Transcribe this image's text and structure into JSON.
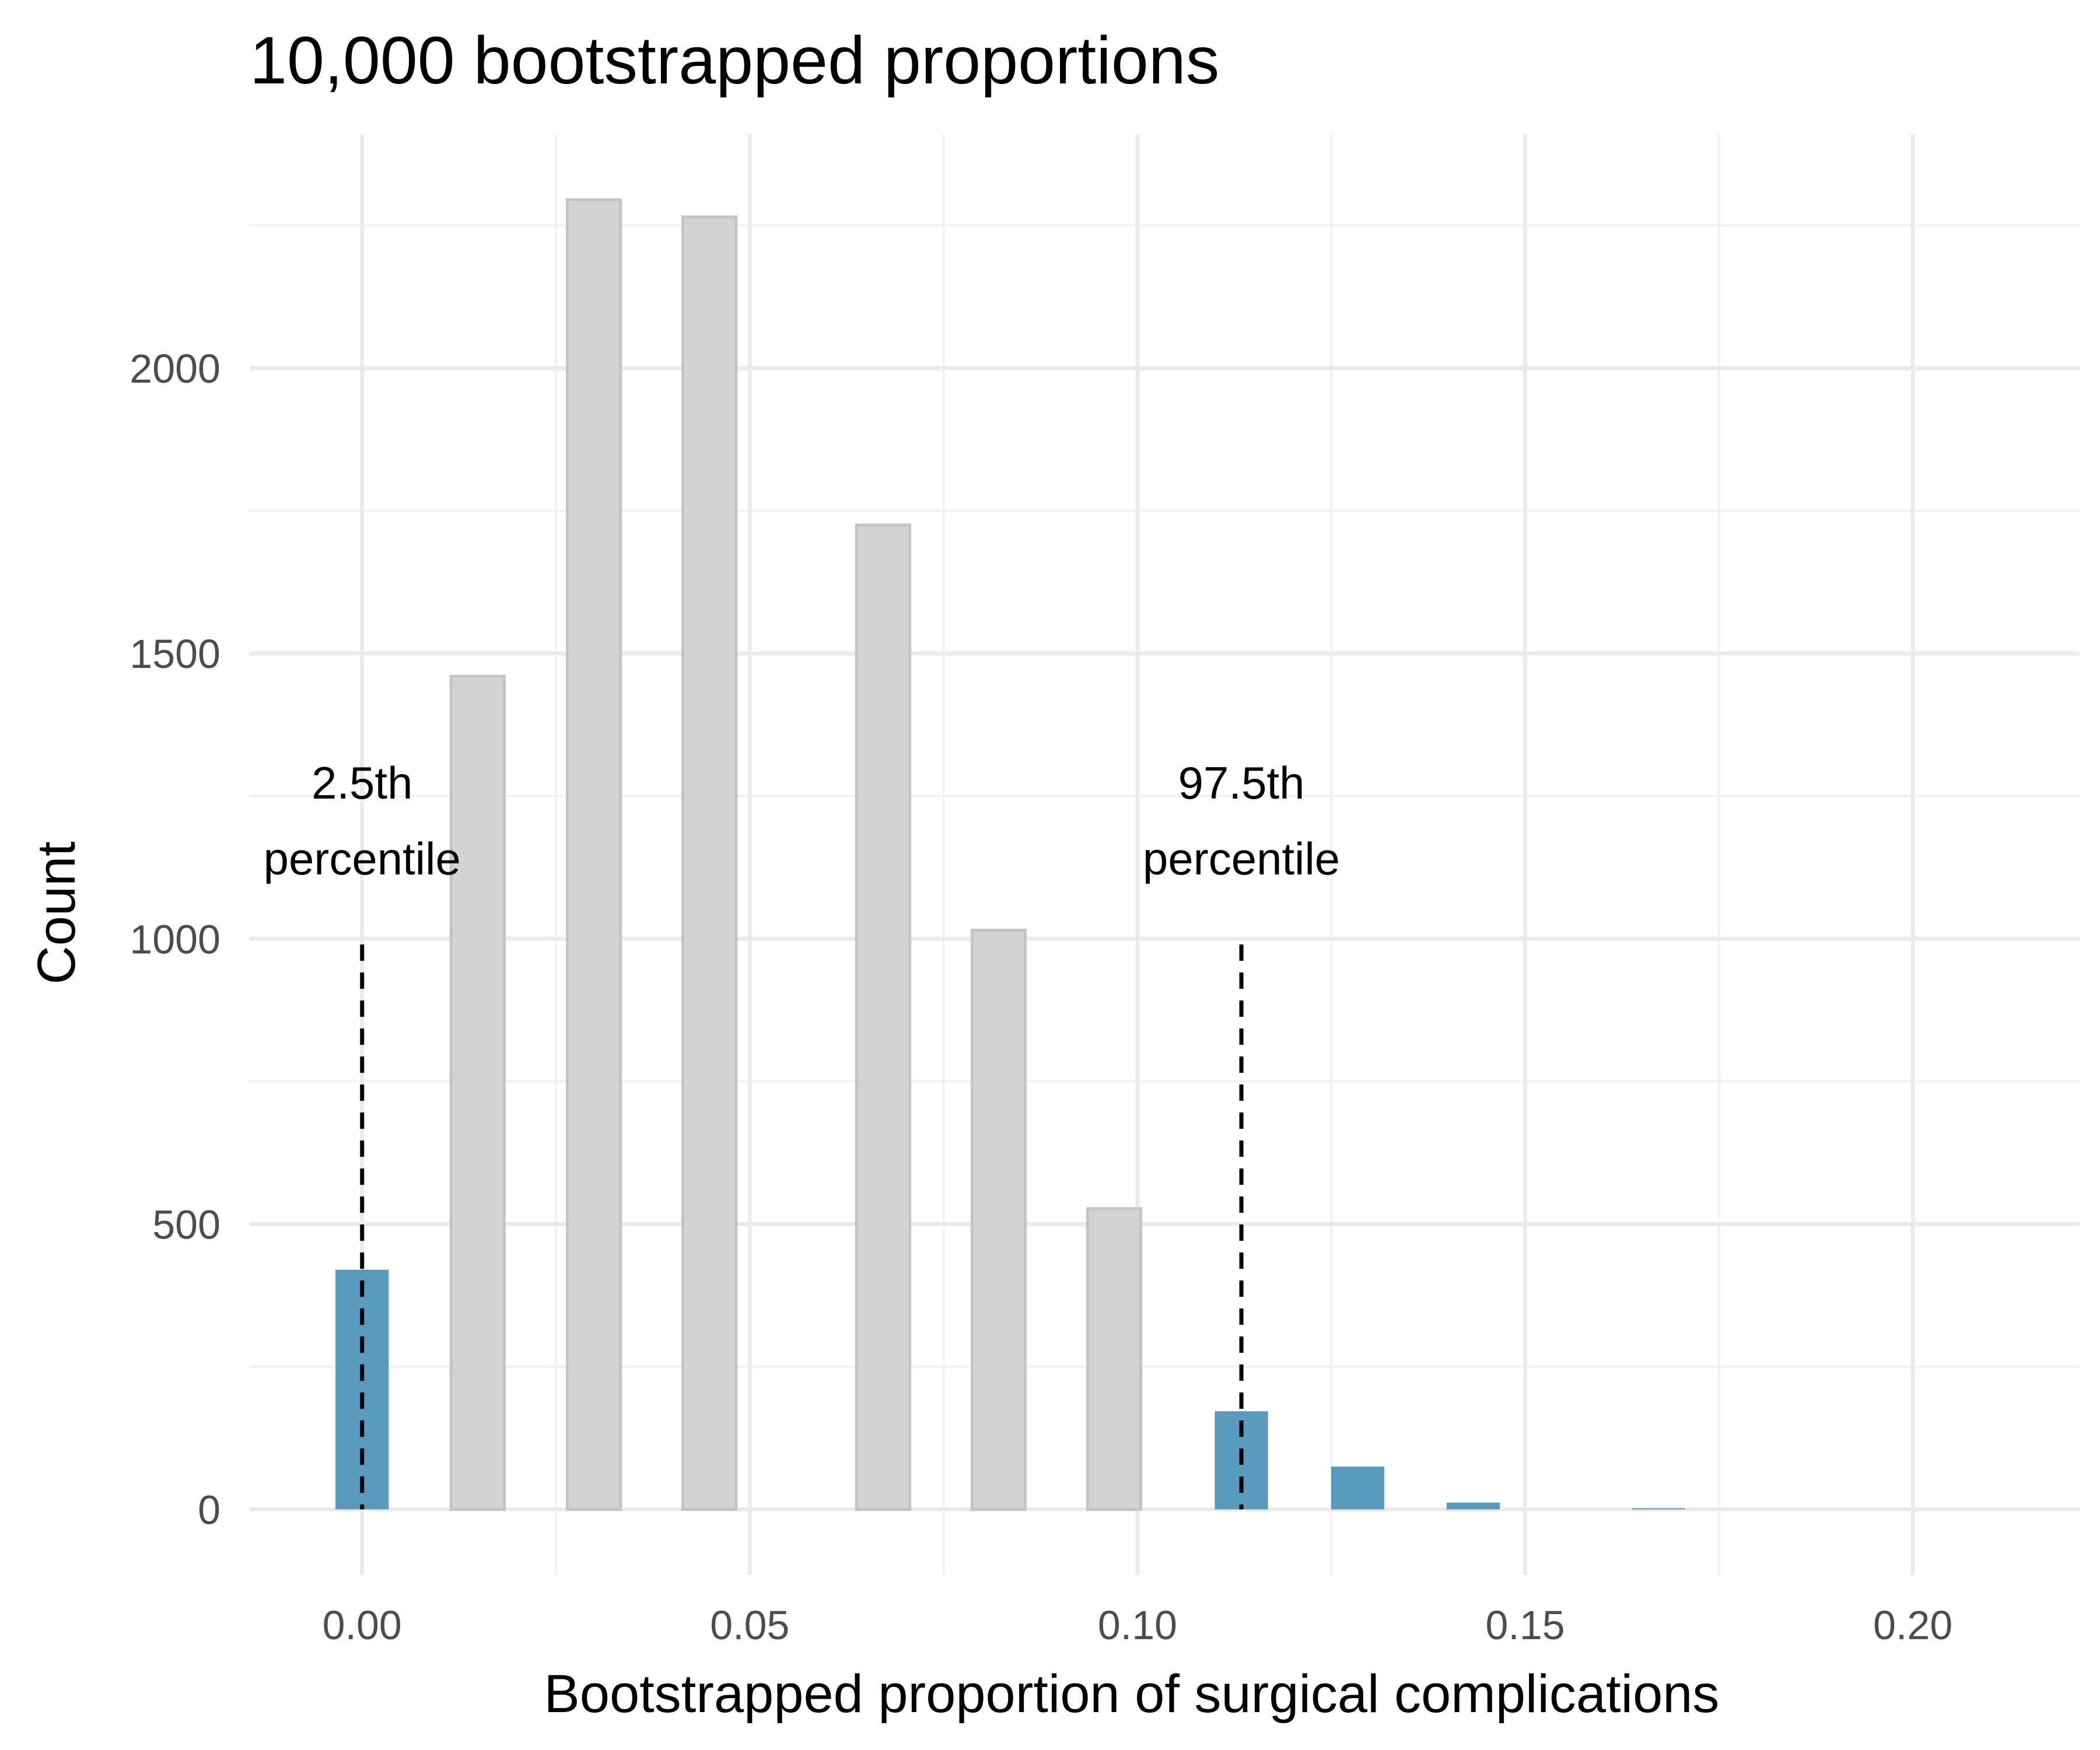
{
  "chart_data": {
    "type": "bar",
    "title": "10,000 bootstrapped proportions",
    "xlabel": "Bootstrapped proportion of surgical complications",
    "ylabel": "Count",
    "xlim": [
      -0.0145,
      0.2215
    ],
    "ylim": [
      -115,
      2410
    ],
    "x_ticks": [
      0.0,
      0.05,
      0.1,
      0.15,
      0.2
    ],
    "x_tick_labels": [
      "0.00",
      "0.05",
      "0.10",
      "0.15",
      "0.20"
    ],
    "y_ticks": [
      0,
      500,
      1000,
      1500,
      2000
    ],
    "y_tick_labels": [
      "0",
      "500",
      "1000",
      "1500",
      "2000"
    ],
    "grid": true,
    "bins": [
      {
        "x": 0.0,
        "count": 420,
        "tail": true
      },
      {
        "x": 0.0149,
        "count": 1460,
        "tail": false
      },
      {
        "x": 0.0299,
        "count": 2295,
        "tail": false
      },
      {
        "x": 0.0448,
        "count": 2265,
        "tail": false
      },
      {
        "x": 0.0672,
        "count": 1725,
        "tail": false
      },
      {
        "x": 0.0821,
        "count": 1015,
        "tail": false
      },
      {
        "x": 0.097,
        "count": 527,
        "tail": false
      },
      {
        "x": 0.1134,
        "count": 172,
        "tail": true
      },
      {
        "x": 0.1284,
        "count": 75,
        "tail": true
      },
      {
        "x": 0.1433,
        "count": 12,
        "tail": true
      },
      {
        "x": 0.1672,
        "count": 2,
        "tail": true
      }
    ],
    "percentile_lines": [
      {
        "x": 0.0,
        "y_top": 990,
        "label_line1": "2.5th",
        "label_line2": "percentile"
      },
      {
        "x": 0.1134,
        "y_top": 990,
        "label_line1": "97.5th",
        "label_line2": "percentile"
      }
    ],
    "colors": {
      "tail_fill": "#5a9bbd",
      "middle_fill": "#d3d3d3",
      "middle_stroke": "#c4c4c4",
      "grid_major": "#ebebeb",
      "grid_minor": "#f2f2f2",
      "dashed_line": "#000000"
    }
  }
}
